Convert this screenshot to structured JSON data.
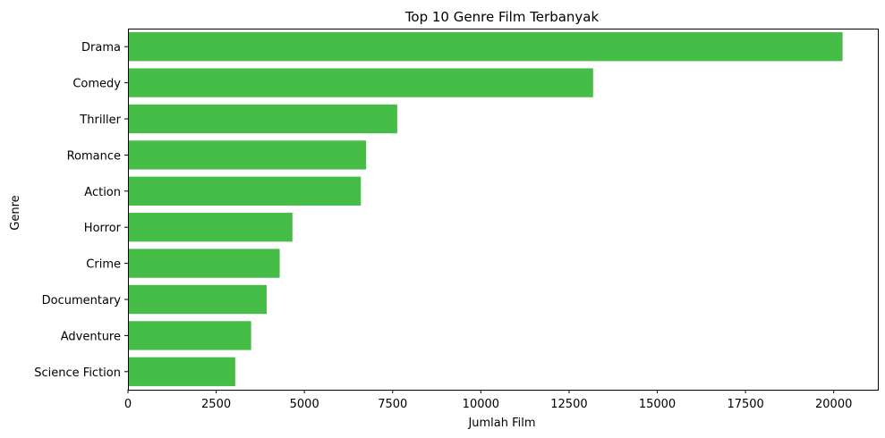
{
  "chart_data": {
    "type": "bar",
    "orientation": "horizontal",
    "title": "Top 10 Genre Film Terbanyak",
    "xlabel": "Jumlah Film",
    "ylabel": "Genre",
    "categories": [
      "Drama",
      "Comedy",
      "Thriller",
      "Romance",
      "Action",
      "Horror",
      "Crime",
      "Documentary",
      "Adventure",
      "Science Fiction"
    ],
    "values": [
      20250,
      13180,
      7630,
      6750,
      6600,
      4660,
      4300,
      3930,
      3490,
      3040
    ],
    "xlim": [
      0,
      21250
    ],
    "xticks": [
      0,
      2500,
      5000,
      7500,
      10000,
      12500,
      15000,
      17500,
      20000
    ],
    "grid": false,
    "bar_color": "#46bd46"
  }
}
